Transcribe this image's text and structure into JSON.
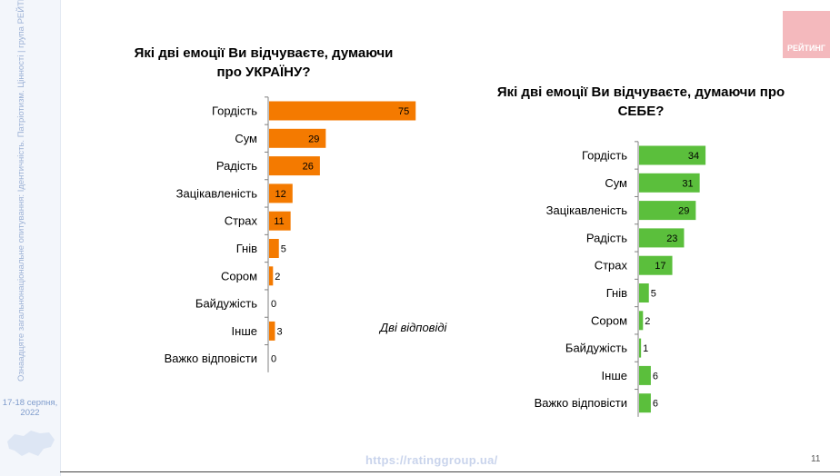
{
  "sidebar": {
    "vertical_text": "Ознаадцяте загальнонаціональне опитування: Ідентичність. Патріотизм. Цінності | група РЕЙТИНГ",
    "date": "17-18 серпня, 2022"
  },
  "logo": {
    "text": "РЕЙТИНГ",
    "color": "#f4b9bd"
  },
  "note": "Дві відповіді",
  "footer": {
    "url": "https://ratinggroup.ua/",
    "page": "11"
  },
  "colors": {
    "orange": "#f47a00",
    "green": "#5bbf3c",
    "axis": "#808080"
  },
  "chart_data": [
    {
      "type": "bar",
      "orientation": "horizontal",
      "title": "Які дві емоції Ви відчуваєте, думаючи про УКРАЇНУ?",
      "categories": [
        "Гордість",
        "Сум",
        "Радість",
        "Зацікавленість",
        "Страх",
        "Гнів",
        "Сором",
        "Байдужість",
        "Інше",
        "Важко відповісти"
      ],
      "values": [
        75,
        29,
        26,
        12,
        11,
        5,
        2,
        0,
        3,
        0
      ],
      "color": "#f47a00"
    },
    {
      "type": "bar",
      "orientation": "horizontal",
      "title": "Які дві емоції Ви відчуваєте, думаючи про СЕБЕ?",
      "categories": [
        "Гордість",
        "Сум",
        "Зацікавленість",
        "Радість",
        "Страх",
        "Гнів",
        "Сором",
        "Байдужість",
        "Інше",
        "Важко відповісти"
      ],
      "values": [
        34,
        31,
        29,
        23,
        17,
        5,
        2,
        1,
        6,
        6
      ],
      "color": "#5bbf3c"
    }
  ]
}
